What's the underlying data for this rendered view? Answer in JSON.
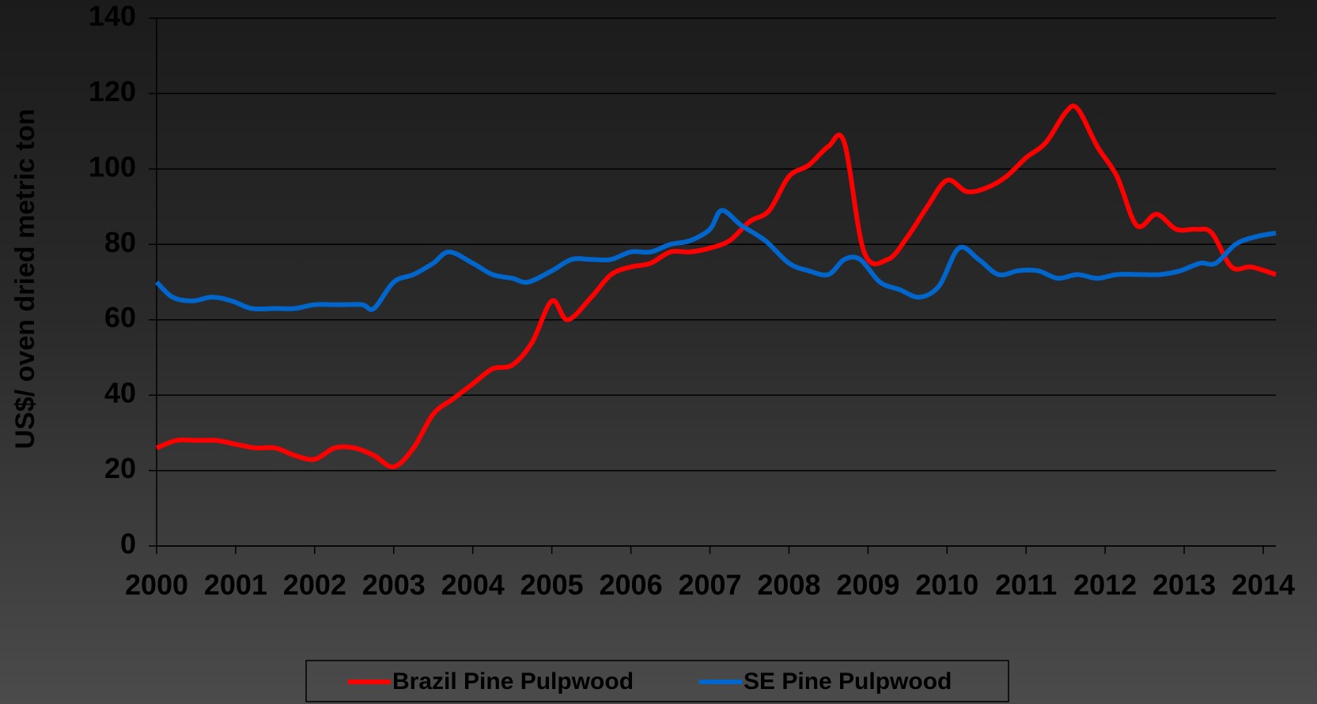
{
  "chart_data": {
    "type": "line",
    "y_label": "US$/ oven dried  metric ton",
    "xlim": [
      2000,
      2014.16
    ],
    "xticks": [
      2000,
      2001,
      2002,
      2003,
      2004,
      2005,
      2006,
      2007,
      2008,
      2009,
      2010,
      2011,
      2012,
      2013,
      2014
    ],
    "ylim": [
      0,
      140
    ],
    "yticks": [
      0,
      20,
      40,
      60,
      80,
      100,
      120,
      140
    ],
    "grid": true,
    "legend": "bottom",
    "series": [
      {
        "name": "Brazil Pine Pulpwood",
        "color": "#ff0000",
        "x": [
          2000,
          2000.25,
          2000.5,
          2000.75,
          2001,
          2001.25,
          2001.5,
          2001.75,
          2002,
          2002.25,
          2002.5,
          2002.75,
          2003,
          2003.25,
          2003.5,
          2003.75,
          2004,
          2004.25,
          2004.5,
          2004.75,
          2005,
          2005.2,
          2005.5,
          2005.75,
          2006,
          2006.25,
          2006.5,
          2006.75,
          2007,
          2007.25,
          2007.5,
          2007.75,
          2008,
          2008.25,
          2008.5,
          2008.7,
          2008.95,
          2009.25,
          2009.5,
          2009.75,
          2010,
          2010.25,
          2010.5,
          2010.75,
          2011,
          2011.25,
          2011.5,
          2011.65,
          2011.9,
          2012.15,
          2012.4,
          2012.65,
          2012.9,
          2013.15,
          2013.35,
          2013.6,
          2013.85,
          2014.16
        ],
        "values": [
          26,
          28,
          28,
          28,
          27,
          26,
          26,
          24,
          23,
          26,
          26,
          24,
          21,
          26,
          35,
          39,
          43,
          47,
          48,
          54,
          65,
          60,
          66,
          72,
          74,
          75,
          78,
          78,
          79,
          81,
          86,
          89,
          98,
          101,
          106,
          107,
          78,
          76,
          82,
          90,
          97,
          94,
          95,
          98,
          103,
          107,
          115,
          116,
          106,
          98,
          85,
          88,
          84,
          84,
          83,
          74,
          74,
          72
        ]
      },
      {
        "name": "SE Pine Pulpwood",
        "color": "#0066cc",
        "x": [
          2000,
          2000.2,
          2000.45,
          2000.7,
          2000.95,
          2001.2,
          2001.5,
          2001.75,
          2002,
          2002.3,
          2002.6,
          2002.75,
          2003,
          2003.25,
          2003.5,
          2003.7,
          2004,
          2004.25,
          2004.5,
          2004.7,
          2005,
          2005.25,
          2005.5,
          2005.75,
          2006,
          2006.25,
          2006.5,
          2006.75,
          2007,
          2007.15,
          2007.4,
          2007.7,
          2008,
          2008.25,
          2008.5,
          2008.7,
          2008.9,
          2009.15,
          2009.4,
          2009.65,
          2009.9,
          2010.15,
          2010.4,
          2010.65,
          2010.9,
          2011.15,
          2011.4,
          2011.65,
          2011.9,
          2012.15,
          2012.45,
          2012.7,
          2012.95,
          2013.2,
          2013.4,
          2013.65,
          2013.9,
          2014.16
        ],
        "values": [
          70,
          66,
          65,
          66,
          65,
          63,
          63,
          63,
          64,
          64,
          64,
          63,
          70,
          72,
          75,
          78,
          75,
          72,
          71,
          70,
          73,
          76,
          76,
          76,
          78,
          78,
          80,
          81,
          84,
          89,
          85,
          81,
          75,
          73,
          72,
          76,
          76,
          70,
          68,
          66,
          69,
          79,
          76,
          72,
          73,
          73,
          71,
          72,
          71,
          72,
          72,
          72,
          73,
          75,
          75,
          80,
          82,
          83
        ]
      }
    ]
  }
}
